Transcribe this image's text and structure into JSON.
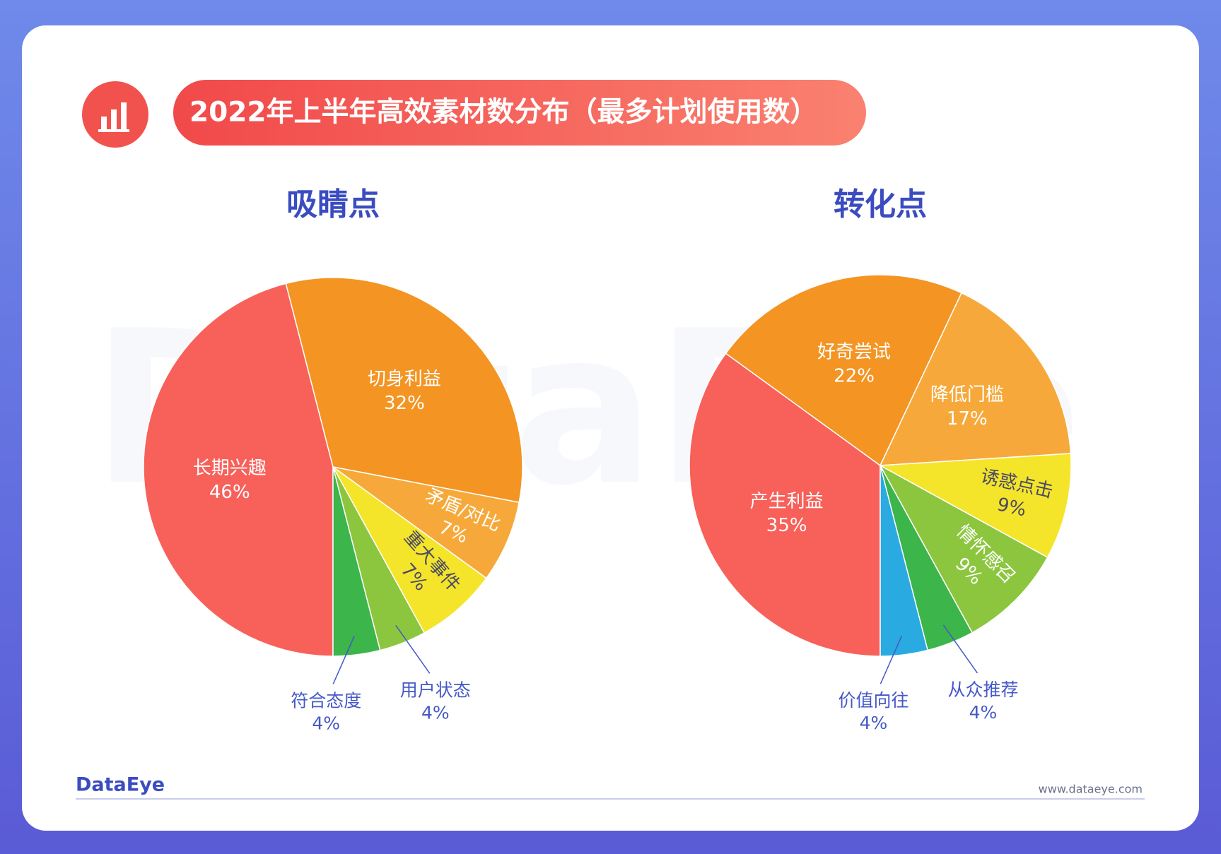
{
  "title": "2022年上半年高效素材数分布（最多计划使用数）",
  "watermark": "DataEye",
  "footer": {
    "brand": "DataEye",
    "url": "www.dataeye.com"
  },
  "chart_data": [
    {
      "type": "pie",
      "title": "吸睛点",
      "categories": [
        "长期兴趣",
        "切身利益",
        "矛盾/对比",
        "重大事件",
        "用户状态",
        "符合态度"
      ],
      "values": [
        46,
        32,
        7,
        7,
        4,
        4
      ],
      "value_labels": [
        "46%",
        "32%",
        "7%",
        "7%",
        "4%",
        "4%"
      ],
      "colors": [
        "#f8605a",
        "#f39423",
        "#f6a93a",
        "#f5e52a",
        "#8cc63f",
        "#3cb54a"
      ]
    },
    {
      "type": "pie",
      "title": "转化点",
      "categories": [
        "产生利益",
        "好奇尝试",
        "降低门槛",
        "诱惑点击",
        "情怀感召",
        "从众推荐",
        "价值向往"
      ],
      "values": [
        35,
        22,
        17,
        9,
        9,
        4,
        4
      ],
      "value_labels": [
        "35%",
        "22%",
        "17%",
        "9%",
        "9%",
        "4%",
        "4%"
      ],
      "colors": [
        "#f8605a",
        "#f39423",
        "#f6a93a",
        "#f5e52a",
        "#8cc63f",
        "#3cb54a",
        "#29aae1"
      ]
    }
  ]
}
